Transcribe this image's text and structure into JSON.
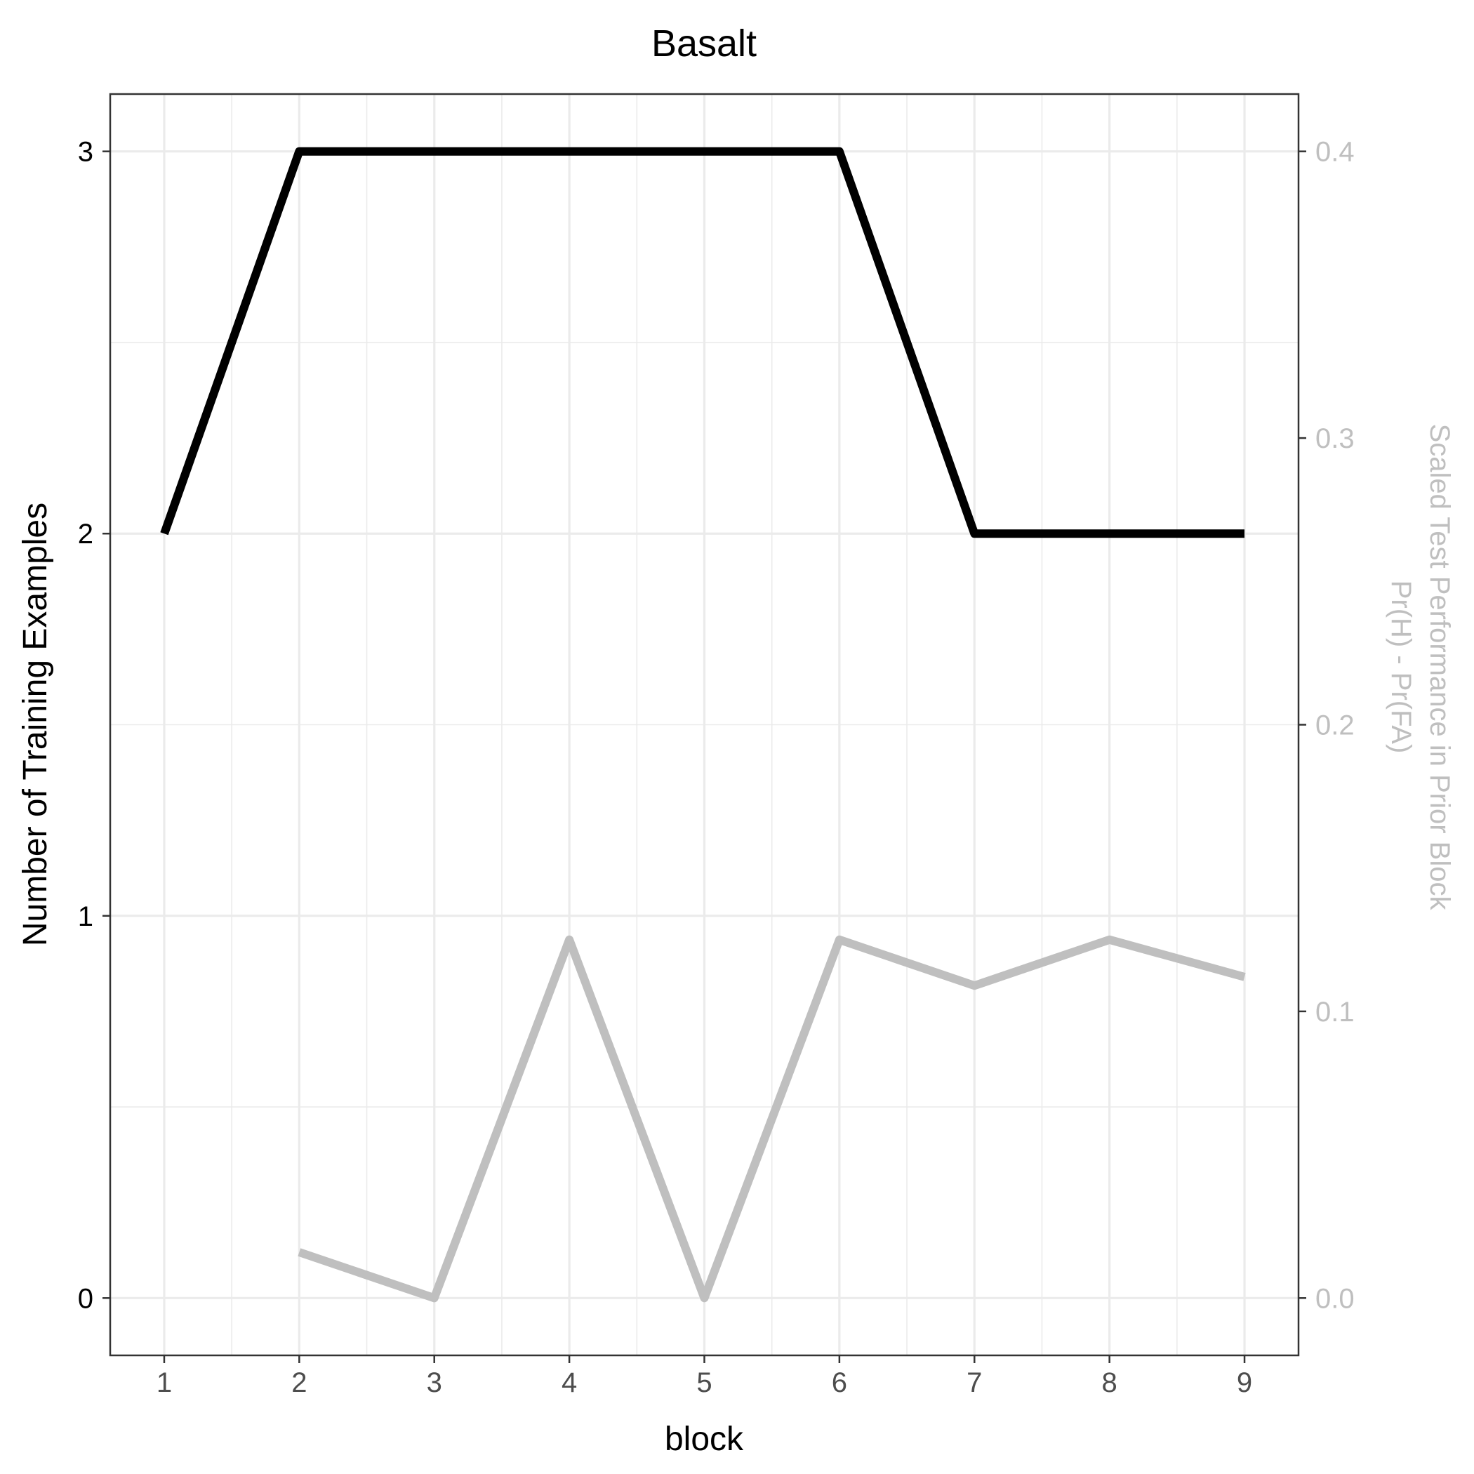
{
  "chart_data": {
    "type": "line",
    "title": "Basalt",
    "xlabel": "block",
    "ylabel": "Number of Training Examples",
    "y2label_line1": "Scaled Test Performance in Prior Block",
    "y2label_line2": "Pr(H) - Pr(FA)",
    "x": [
      1,
      2,
      3,
      4,
      5,
      6,
      7,
      8,
      9
    ],
    "xlim": [
      0.6,
      9.4
    ],
    "ylim": [
      -0.15,
      3.15
    ],
    "y2lim": [
      -0.02,
      0.42
    ],
    "x_ticks": [
      "1",
      "2",
      "3",
      "4",
      "5",
      "6",
      "7",
      "8",
      "9"
    ],
    "y_ticks": [
      "0",
      "1",
      "2",
      "3"
    ],
    "y2_ticks": [
      "0.0",
      "0.1",
      "0.2",
      "0.3",
      "0.4"
    ],
    "grid": true,
    "series": [
      {
        "axis": "left",
        "color": "#000000",
        "values": [
          2,
          3,
          3,
          3,
          3,
          3,
          2,
          2,
          2
        ]
      },
      {
        "axis": "right",
        "color": "#bfbfbf",
        "values": [
          null,
          0.016,
          0.0,
          0.125,
          0.0,
          0.125,
          0.109,
          0.125,
          0.112
        ]
      }
    ]
  }
}
